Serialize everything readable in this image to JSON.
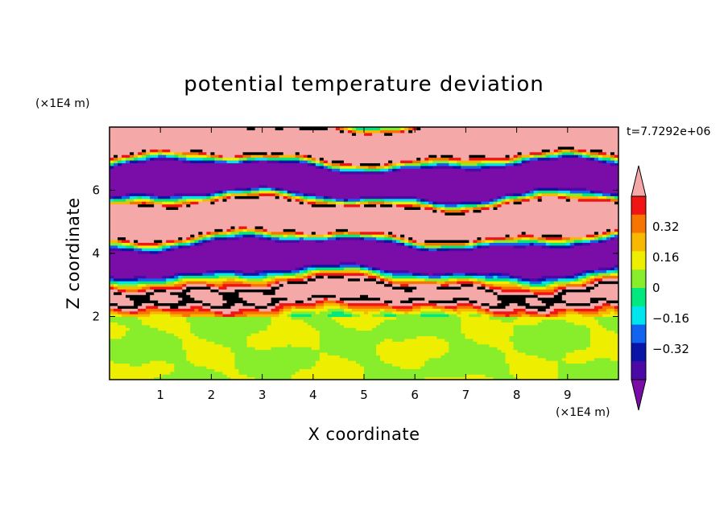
{
  "chart_data": {
    "type": "heatmap",
    "title": "potential temperature deviation",
    "xlabel": "X coordinate",
    "ylabel": "Z coordinate",
    "x_unit": "(×1E4 m)",
    "y_unit": "(×1E4 m)",
    "time_label": "t=7.7292e+06",
    "xlim": [
      0,
      10
    ],
    "ylim": [
      0,
      8
    ],
    "x_ticks": [
      "1",
      "2",
      "3",
      "4",
      "5",
      "6",
      "7",
      "8",
      "9"
    ],
    "y_ticks": [
      "2",
      "4",
      "6"
    ],
    "grid": false,
    "colorbar": {
      "levels": [
        -0.48,
        -0.4,
        -0.32,
        -0.24,
        -0.16,
        -0.08,
        0,
        0.08,
        0.16,
        0.24,
        0.32,
        0.4,
        0.48
      ],
      "tick_labels": [
        "0.32",
        "0.16",
        "0",
        "−0.16",
        "−0.32"
      ],
      "tick_values": [
        0.32,
        0.16,
        0,
        -0.16,
        -0.32
      ],
      "extend": "both",
      "colors": [
        "#7a0ca8",
        "#4b0aa5",
        "#0a14a6",
        "#1164f0",
        "#00e6ee",
        "#00e87e",
        "#88ee2c",
        "#eeee00",
        "#f8b800",
        "#f87400",
        "#f01414",
        "#f4a8a8"
      ]
    },
    "regions": {
      "lower_layer_z": [
        0,
        2
      ],
      "lower_layer_values": [
        -0.04,
        0.04
      ],
      "upper_layer_z": [
        2,
        8
      ],
      "upper_layer_pattern": "alternating horizontal layers of strongly negative (< -0.48) and strongly positive (> 0.48) deviation"
    }
  }
}
